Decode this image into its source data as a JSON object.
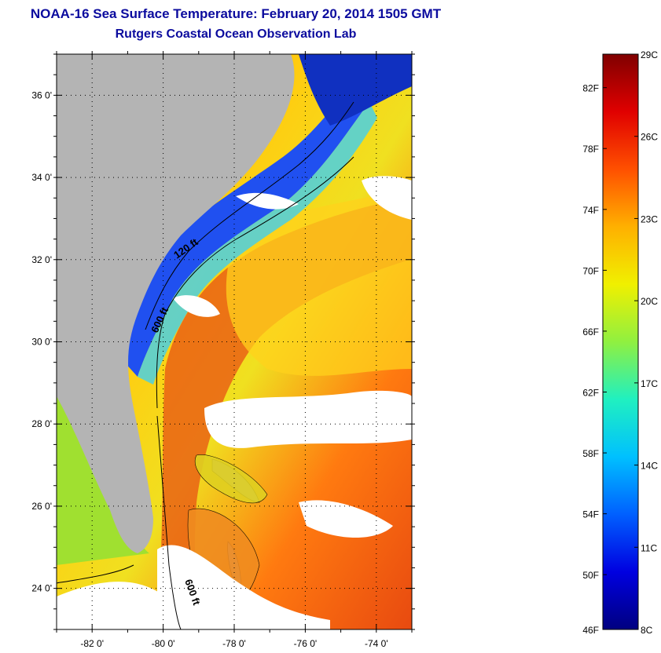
{
  "header": {
    "title": "NOAA-16 Sea Surface Temperature:  February 20, 2014 1505 GMT",
    "subtitle": "Rutgers Coastal Ocean Observation Lab"
  },
  "map": {
    "lat_labels": [
      "36 0'",
      "34 0'",
      "32 0'",
      "30 0'",
      "28 0'",
      "26 0'",
      "24 0'"
    ],
    "lat_values": [
      36,
      34,
      32,
      30,
      28,
      26,
      24
    ],
    "lon_labels": [
      "-82 0'",
      "-80 0'",
      "-78 0'",
      "-76 0'",
      "-74 0'"
    ],
    "lon_values": [
      -82,
      -80,
      -78,
      -76,
      -74
    ],
    "lon_range": [
      -83,
      -73
    ],
    "lat_range": [
      23,
      37
    ],
    "contour_labels": [
      "120 ft",
      "600 ft",
      "600 ft"
    ]
  },
  "colorbar": {
    "fahrenheit_labels": [
      "82F",
      "78F",
      "74F",
      "70F",
      "66F",
      "62F",
      "58F",
      "54F",
      "50F",
      "46F"
    ],
    "fahrenheit_values": [
      82,
      78,
      74,
      70,
      66,
      62,
      58,
      54,
      50,
      46
    ],
    "celsius_labels": [
      "29C",
      "26C",
      "23C",
      "20C",
      "17C",
      "14C",
      "11C",
      "8C"
    ],
    "celsius_values": [
      29,
      26,
      23,
      20,
      17,
      14,
      11,
      8
    ],
    "range_c": [
      8,
      29
    ],
    "colors": [
      "#000080",
      "#0000e0",
      "#0060ff",
      "#00c0ff",
      "#20f0c0",
      "#90f040",
      "#f0f000",
      "#ffb000",
      "#ff5000",
      "#e00000",
      "#800000"
    ]
  },
  "palette": {
    "land": "#b4b4b4",
    "title_color": "#0b0b9e"
  }
}
